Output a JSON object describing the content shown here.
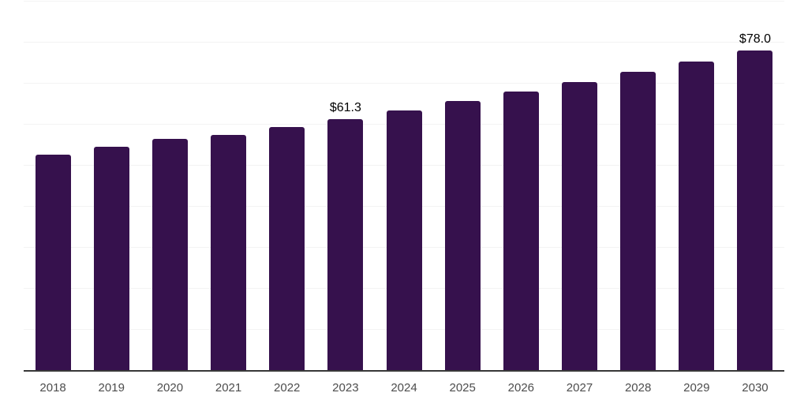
{
  "chart_data": {
    "type": "bar",
    "title": "",
    "xlabel": "",
    "ylabel": "",
    "categories": [
      "2018",
      "2019",
      "2020",
      "2021",
      "2022",
      "2023",
      "2024",
      "2025",
      "2026",
      "2027",
      "2028",
      "2029",
      "2030"
    ],
    "values": [
      52.5,
      54.5,
      56.4,
      57.4,
      59.3,
      61.3,
      63.4,
      65.7,
      68.0,
      70.3,
      72.8,
      75.3,
      78.0
    ],
    "data_labels": [
      "",
      "",
      "",
      "",
      "",
      "$61.3",
      "",
      "",
      "",
      "",
      "",
      "",
      "$78.0"
    ],
    "ylim": [
      0,
      90
    ],
    "gridline_step": 10,
    "grid": "horizontal",
    "legend_position": "none",
    "y_tick_labels_visible": false,
    "colors": {
      "bar": "#36114D",
      "gridline": "#F3F3F3",
      "axis_line": "#383838",
      "tick_label": "#4D4D4D",
      "data_label": "#000000",
      "background": "#FFFFFF"
    }
  }
}
